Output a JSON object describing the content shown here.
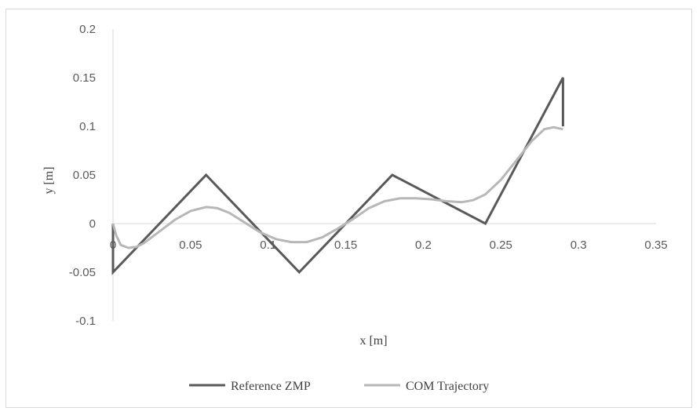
{
  "chart_data": {
    "type": "line",
    "title": "",
    "xlabel": "x [m]",
    "ylabel": "y [m]",
    "xlim": [
      0,
      0.35
    ],
    "ylim": [
      -0.1,
      0.2
    ],
    "x_ticks": [
      0,
      0.05,
      0.1,
      0.15,
      0.2,
      0.25,
      0.3,
      0.35
    ],
    "x_tick_labels": [
      "0",
      "0.05",
      "0.1",
      "0.15",
      "0.2",
      "0.25",
      "0.3",
      "0.35"
    ],
    "y_ticks": [
      -0.1,
      -0.05,
      0,
      0.05,
      0.1,
      0.15,
      0.2
    ],
    "y_tick_labels": [
      "-0.1",
      "-0.05",
      "0",
      "0.05",
      "0.1",
      "0.15",
      "0.2"
    ],
    "grid": false,
    "legend_position": "bottom",
    "series": [
      {
        "name": "Reference ZMP",
        "color": "#595959",
        "points": [
          [
            0,
            0
          ],
          [
            0,
            -0.05
          ],
          [
            0.06,
            0.05
          ],
          [
            0.12,
            -0.05
          ],
          [
            0.18,
            0.05
          ],
          [
            0.24,
            0
          ],
          [
            0.29,
            0.15
          ],
          [
            0.29,
            0.1
          ]
        ]
      },
      {
        "name": "COM Trajectory",
        "color": "#b7b7b7",
        "points": [
          [
            0,
            0
          ],
          [
            0.002,
            -0.012
          ],
          [
            0.005,
            -0.022
          ],
          [
            0.01,
            -0.025
          ],
          [
            0.015,
            -0.024
          ],
          [
            0.02,
            -0.02
          ],
          [
            0.03,
            -0.008
          ],
          [
            0.04,
            0.004
          ],
          [
            0.05,
            0.013
          ],
          [
            0.06,
            0.017
          ],
          [
            0.067,
            0.016
          ],
          [
            0.075,
            0.011
          ],
          [
            0.085,
            0.001
          ],
          [
            0.095,
            -0.009
          ],
          [
            0.105,
            -0.016
          ],
          [
            0.115,
            -0.019
          ],
          [
            0.125,
            -0.019
          ],
          [
            0.135,
            -0.014
          ],
          [
            0.145,
            -0.005
          ],
          [
            0.155,
            0.005
          ],
          [
            0.165,
            0.016
          ],
          [
            0.175,
            0.023
          ],
          [
            0.185,
            0.026
          ],
          [
            0.195,
            0.026
          ],
          [
            0.205,
            0.025
          ],
          [
            0.215,
            0.023
          ],
          [
            0.225,
            0.022
          ],
          [
            0.232,
            0.024
          ],
          [
            0.24,
            0.03
          ],
          [
            0.25,
            0.045
          ],
          [
            0.26,
            0.065
          ],
          [
            0.27,
            0.085
          ],
          [
            0.278,
            0.097
          ],
          [
            0.284,
            0.099
          ],
          [
            0.29,
            0.097
          ]
        ]
      }
    ]
  }
}
